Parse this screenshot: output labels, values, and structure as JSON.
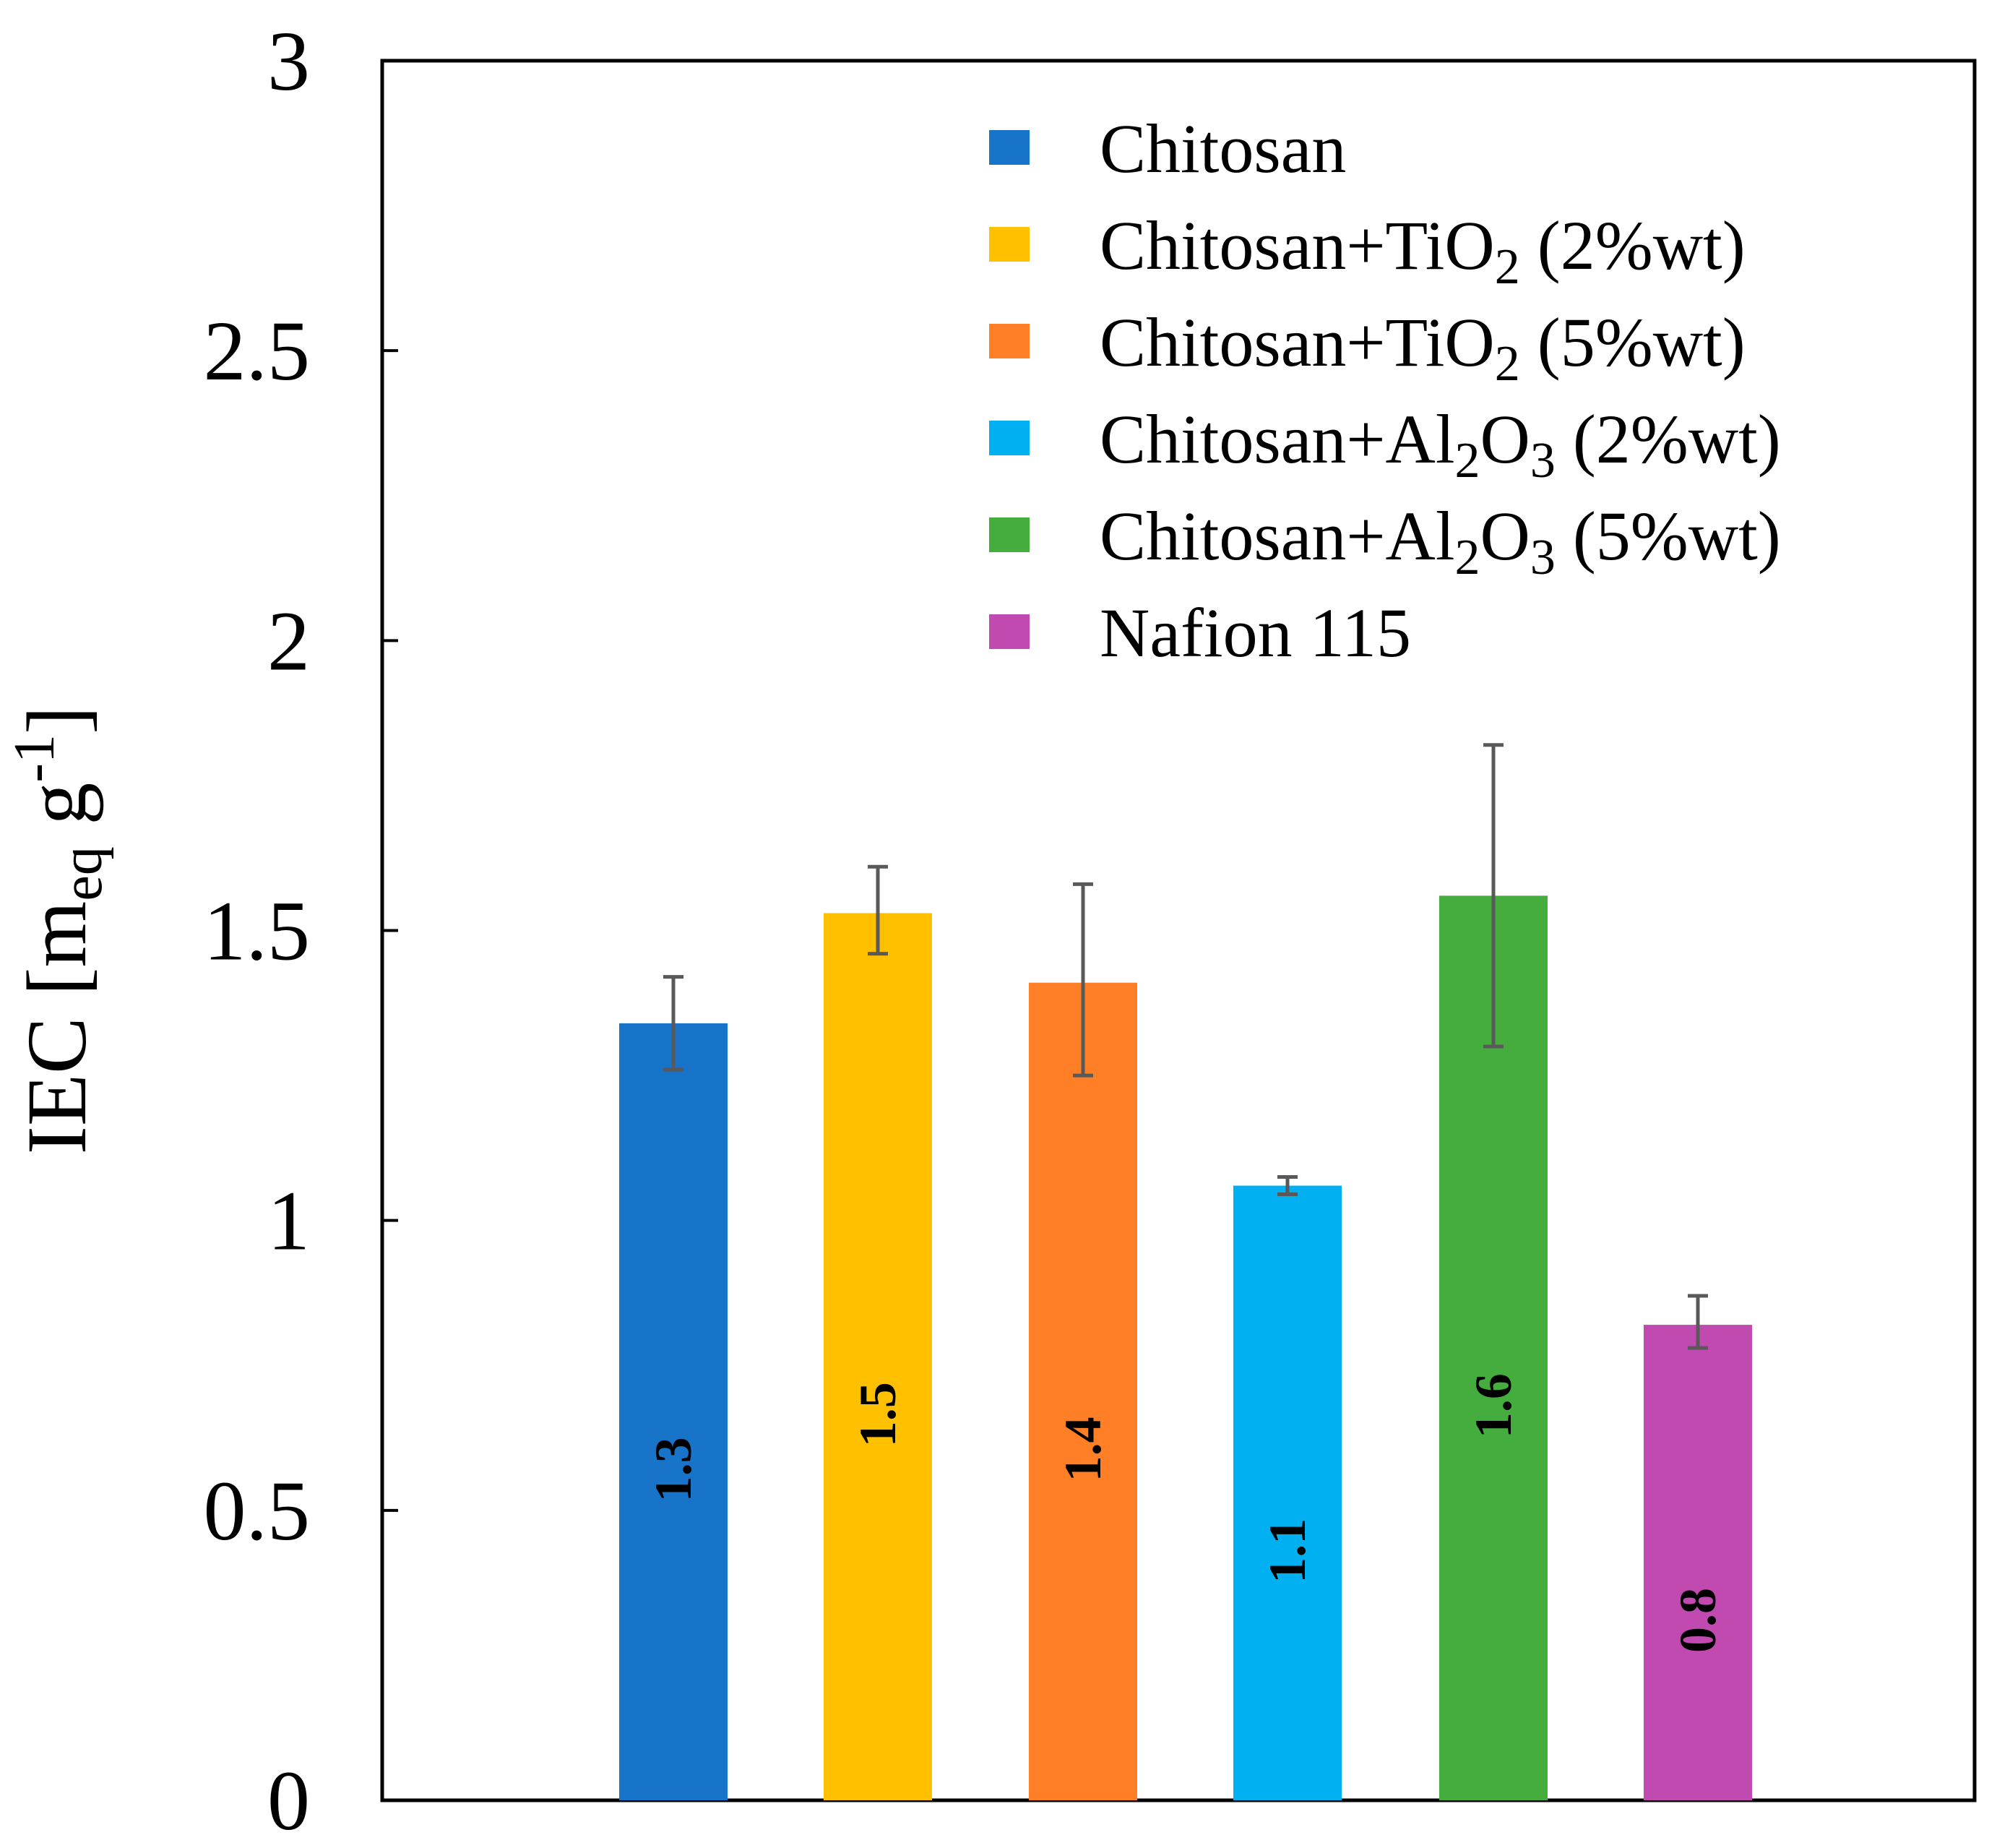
{
  "chart_data": {
    "type": "bar",
    "title": "",
    "xlabel": "",
    "ylabel": "IEC [meq g-1]",
    "ylabel_parts": {
      "main": "IEC [m",
      "sub": "eq",
      "mid": " g",
      "sup": "-1",
      "end": "]"
    },
    "ylim": [
      0,
      3
    ],
    "yticks": [
      "0",
      "0.5",
      "1",
      "1.5",
      "2",
      "2.5",
      "3"
    ],
    "ytick_values": [
      0,
      0.5,
      1,
      1.5,
      2,
      2.5,
      3
    ],
    "grid": false,
    "legend_position": "top-right",
    "categories": [
      "Chitosan",
      "Chitosan+TiO2 (2%wt)",
      "Chitosan+TiO2 (5%wt)",
      "Chitosan+Al2O3 (2%wt)",
      "Chitosan+Al2O3 (5%wt)",
      "Nafion 115"
    ],
    "legend_parts": [
      {
        "base": "Chitosan",
        "sub": "",
        "tail": "",
        "suffix": ""
      },
      {
        "base": "Chitosan+TiO",
        "sub": "2",
        "tail": "",
        "suffix": " (2%wt)"
      },
      {
        "base": "Chitosan+TiO",
        "sub": "2",
        "tail": "",
        "suffix": " (5%wt)"
      },
      {
        "base": "Chitosan+Al",
        "sub": "2",
        "tail": "O",
        "tail_sub": "3",
        "suffix": "  (2%wt)"
      },
      {
        "base": "Chitosan+Al",
        "sub": "2",
        "tail": "O",
        "tail_sub": "3",
        "suffix": "  (5%wt)"
      },
      {
        "base": "Nafion 115",
        "sub": "",
        "tail": "",
        "suffix": ""
      }
    ],
    "values": [
      1.34,
      1.53,
      1.41,
      1.06,
      1.56,
      0.82
    ],
    "error_low": [
      1.26,
      1.46,
      1.25,
      1.045,
      1.3,
      0.78
    ],
    "error_high": [
      1.42,
      1.61,
      1.58,
      1.075,
      1.82,
      0.87
    ],
    "data_labels": [
      "1.3",
      "1.5",
      "1.4",
      "1.1",
      "1.6",
      "0.8"
    ],
    "colors": [
      "#1874C9",
      "#FFC000",
      "#FF7F27",
      "#00B0F0",
      "#45AD3E",
      "#C14AB1"
    ],
    "error_bar_color": "#595959"
  }
}
